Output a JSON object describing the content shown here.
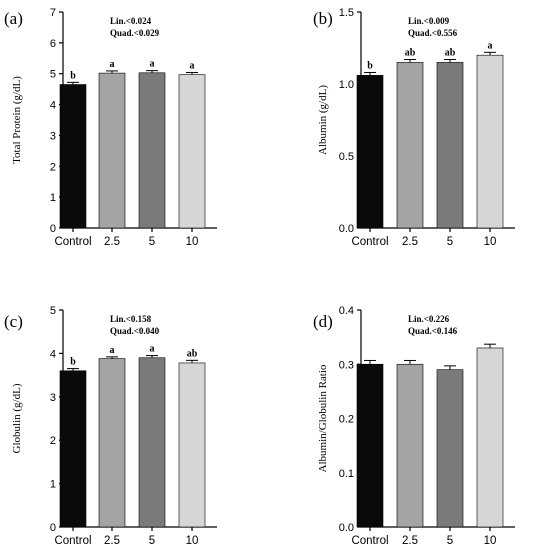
{
  "chart_data": [
    {
      "type": "bar",
      "panel_label": "(a)",
      "ylabel": "Total Protein (g/dL)",
      "categories": [
        "Control",
        "2.5",
        "5",
        "10"
      ],
      "values": [
        4.65,
        5.02,
        5.03,
        4.97
      ],
      "errors": [
        0.07,
        0.07,
        0.07,
        0.07
      ],
      "letters": [
        "b",
        "a",
        "a",
        "a"
      ],
      "ylim": [
        0,
        7
      ],
      "yticks": [
        "0",
        "1",
        "2",
        "3",
        "4",
        "5",
        "6",
        "7"
      ],
      "stats": [
        "Lin.<0.024",
        "Quad.<0.029"
      ],
      "colors": [
        "#0a0a0a",
        "#a4a4a4",
        "#7a7a7a",
        "#d6d6d6"
      ]
    },
    {
      "type": "bar",
      "panel_label": "(b)",
      "ylabel": "Albumin (g/dL)",
      "categories": [
        "Control",
        "2.5",
        "5",
        "10"
      ],
      "values": [
        1.06,
        1.15,
        1.15,
        1.2
      ],
      "errors": [
        0.02,
        0.02,
        0.02,
        0.02
      ],
      "letters": [
        "b",
        "ab",
        "ab",
        "a"
      ],
      "ylim": [
        0,
        1.5
      ],
      "yticks": [
        "0.0",
        "0.5",
        "1.0",
        "1.5"
      ],
      "stats": [
        "Lin.<0.009",
        "Quad.<0.556"
      ],
      "colors": [
        "#0a0a0a",
        "#a4a4a4",
        "#7a7a7a",
        "#d6d6d6"
      ]
    },
    {
      "type": "bar",
      "panel_label": "(c)",
      "ylabel": "Globulin (g/dL)",
      "categories": [
        "Control",
        "2.5",
        "5",
        "10"
      ],
      "values": [
        3.6,
        3.88,
        3.9,
        3.78
      ],
      "errors": [
        0.05,
        0.04,
        0.05,
        0.06
      ],
      "letters": [
        "b",
        "a",
        "a",
        "ab"
      ],
      "ylim": [
        0,
        5
      ],
      "yticks": [
        "0",
        "1",
        "2",
        "3",
        "4",
        "5"
      ],
      "stats": [
        "Lin.<0.158",
        "Quad.<0.040"
      ],
      "colors": [
        "#0a0a0a",
        "#a4a4a4",
        "#7a7a7a",
        "#d6d6d6"
      ]
    },
    {
      "type": "bar",
      "panel_label": "(d)",
      "ylabel": "Albumin/Globulin Ratio",
      "categories": [
        "Control",
        "2.5",
        "5",
        "10"
      ],
      "values": [
        0.3,
        0.3,
        0.29,
        0.33
      ],
      "errors": [
        0.007,
        0.007,
        0.007,
        0.007
      ],
      "letters": [
        "",
        "",
        "",
        ""
      ],
      "ylim": [
        0,
        0.4
      ],
      "yticks": [
        "0.0",
        "0.1",
        "0.2",
        "0.3",
        "0.4"
      ],
      "stats": [
        "Lin.<0.226",
        "Quad.<0.146"
      ],
      "colors": [
        "#0a0a0a",
        "#a4a4a4",
        "#7a7a7a",
        "#d6d6d6"
      ]
    }
  ]
}
